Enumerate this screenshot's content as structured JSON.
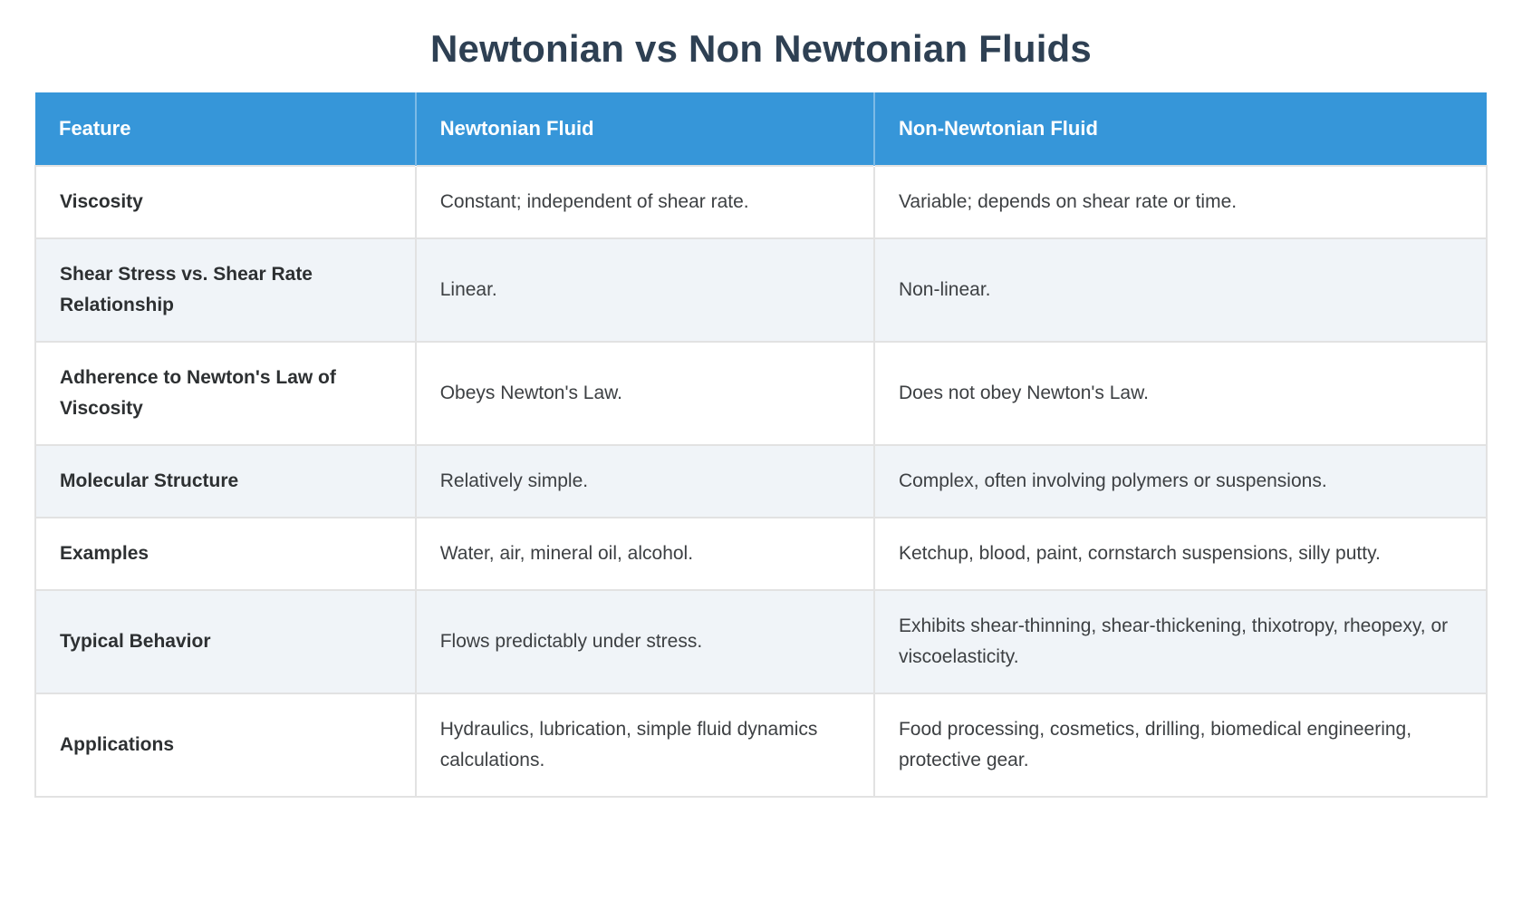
{
  "page": {
    "title": "Newtonian vs Non Newtonian Fluids"
  },
  "colors": {
    "header_bg": "#3696d9",
    "header_text": "#ffffff",
    "title_text": "#2e4053",
    "stripe_bg": "#f0f4f8",
    "row_bg": "#ffffff",
    "border": "#e2e2e2",
    "body_text": "#3d4043",
    "feature_text": "#2d3032"
  },
  "table": {
    "headers": [
      "Feature",
      "Newtonian Fluid",
      "Non-Newtonian Fluid"
    ],
    "rows": [
      {
        "feature": "Viscosity",
        "newtonian": "Constant; independent of shear rate.",
        "non_newtonian": "Variable; depends on shear rate or time."
      },
      {
        "feature": "Shear Stress vs. Shear Rate Relationship",
        "newtonian": "Linear.",
        "non_newtonian": "Non-linear."
      },
      {
        "feature": "Adherence to Newton's Law of Viscosity",
        "newtonian": "Obeys Newton's Law.",
        "non_newtonian": "Does not obey Newton's Law."
      },
      {
        "feature": "Molecular Structure",
        "newtonian": "Relatively simple.",
        "non_newtonian": "Complex, often involving polymers or suspensions."
      },
      {
        "feature": "Examples",
        "newtonian": "Water, air, mineral oil, alcohol.",
        "non_newtonian": "Ketchup, blood, paint, cornstarch suspensions, silly putty."
      },
      {
        "feature": "Typical Behavior",
        "newtonian": "Flows predictably under stress.",
        "non_newtonian": "Exhibits shear-thinning, shear-thickening, thixotropy, rheopexy, or viscoelasticity."
      },
      {
        "feature": "Applications",
        "newtonian": "Hydraulics, lubrication, simple fluid dynamics calculations.",
        "non_newtonian": "Food processing, cosmetics, drilling, biomedical engineering, protective gear."
      }
    ]
  }
}
